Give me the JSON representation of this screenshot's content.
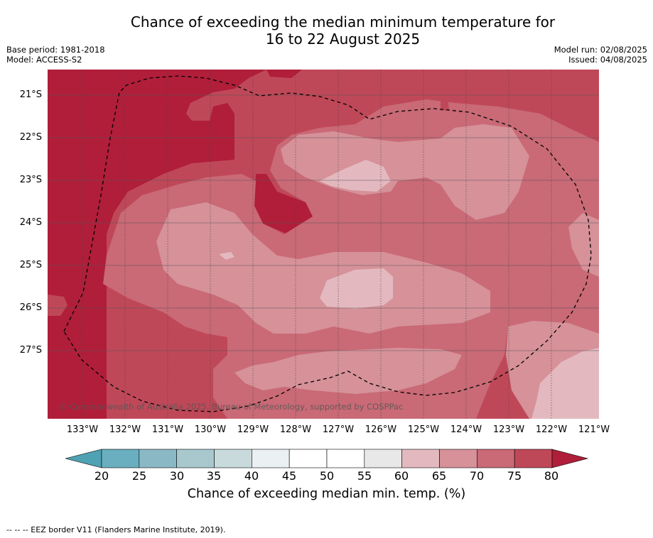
{
  "title": {
    "line1": "Chance of exceeding the median minimum temperature for",
    "line2": "16 to 22 August 2025"
  },
  "meta": {
    "base_period": "Base period: 1981-2018",
    "model": "Model: ACCESS-S2",
    "model_run": "Model run: 02/08/2025",
    "issued": "Issued: 04/08/2025"
  },
  "map": {
    "lat_labels": [
      "21°S",
      "22°S",
      "23°S",
      "24°S",
      "25°S",
      "26°S",
      "27°S"
    ],
    "lon_labels": [
      "133°W",
      "132°W",
      "131°W",
      "130°W",
      "129°W",
      "128°W",
      "127°W",
      "126°W",
      "125°W",
      "124°W",
      "123°W",
      "122°W",
      "121°W"
    ],
    "copyright": "© Commonwealth of Australia 2025, Bureau of Meteorology, supported by COSPPac"
  },
  "colorbar": {
    "ticks": [
      "20",
      "25",
      "30",
      "35",
      "40",
      "45",
      "50",
      "55",
      "60",
      "65",
      "70",
      "75",
      "80"
    ],
    "colors": [
      "#6aafc0",
      "#8ab9c5",
      "#a8c8ce",
      "#c9dadd",
      "#ebf1f3",
      "#ffffff",
      "#ffffff",
      "#e8e8e8",
      "#e3b9bf",
      "#d69199",
      "#c96a76",
      "#bf4858"
    ],
    "under_color": "#4fa2b3",
    "over_color": "#b01e3a",
    "title": "Chance of exceeding median min. temp. (%)"
  },
  "footnote": "--  --  -- EEZ border V11 (Flanders Marine Institute, 2019)."
}
